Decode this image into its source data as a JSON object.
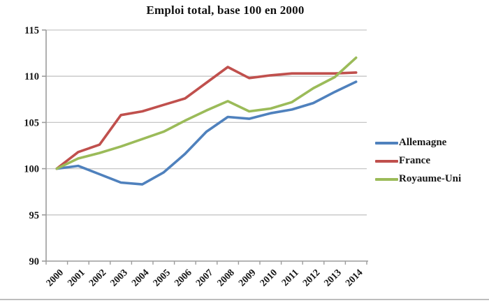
{
  "title": "Emploi total, base 100 en 2000",
  "colors": {
    "allemagne": "#4F81BD",
    "france": "#C0504D",
    "royaume_uni": "#9BBB59",
    "gridline": "#C6C6C6",
    "axis": "#9C9C9C",
    "text": "#171717",
    "background": "#FFFFFF"
  },
  "legend": {
    "position": "right",
    "items": [
      "Allemagne",
      "France",
      "Royaume-Uni"
    ]
  },
  "chart_data": {
    "type": "line",
    "title": "Emploi total, base 100 en 2000",
    "categories": [
      "2000",
      "2001",
      "2002",
      "2003",
      "2004",
      "2005",
      "2006",
      "2007",
      "2008",
      "2009",
      "2010",
      "2011",
      "2012",
      "2013",
      "2014"
    ],
    "series": [
      {
        "name": "Allemagne",
        "color": "#4F81BD",
        "values": [
          100,
          100.3,
          99.4,
          98.5,
          98.3,
          99.6,
          101.6,
          104.0,
          105.6,
          105.4,
          106.0,
          106.4,
          107.1,
          108.3,
          109.4
        ]
      },
      {
        "name": "France",
        "color": "#C0504D",
        "values": [
          100,
          101.8,
          102.6,
          105.8,
          106.2,
          106.9,
          107.6,
          109.3,
          111.0,
          109.8,
          110.1,
          110.3,
          110.3,
          110.3,
          110.4
        ]
      },
      {
        "name": "Royaume-Uni",
        "color": "#9BBB59",
        "values": [
          100,
          101.1,
          101.7,
          102.4,
          103.2,
          104.0,
          105.2,
          106.3,
          107.3,
          106.2,
          106.5,
          107.2,
          108.7,
          109.9,
          112.0
        ]
      }
    ],
    "xlabel": "",
    "ylabel": "",
    "ylim": [
      90,
      115
    ],
    "yticks": [
      90,
      95,
      100,
      105,
      110,
      115
    ],
    "grid": "horizontal",
    "legend_position": "right",
    "x_tick_label_rotation": -45
  }
}
